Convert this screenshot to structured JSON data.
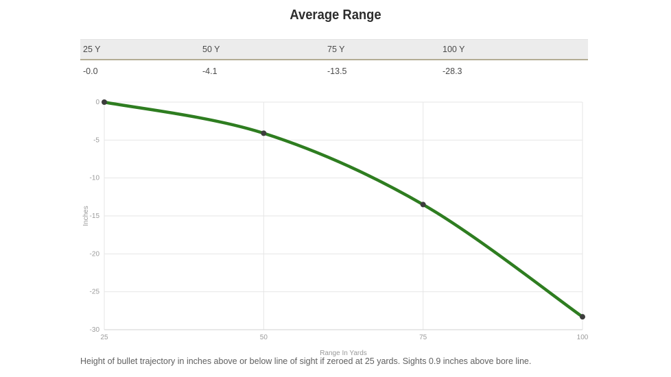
{
  "page": {
    "title": "Average Range",
    "footnote": "Height of bullet trajectory in inches above or below line of sight if zeroed at 25 yards. Sights 0.9 inches above bore line."
  },
  "range_table": {
    "columns": [
      "25 Y",
      "50 Y",
      "75 Y",
      "100 Y"
    ],
    "values": [
      "-0.0",
      "-4.1",
      "-13.5",
      "-28.3"
    ]
  },
  "chart_data": {
    "type": "line",
    "x": [
      25,
      50,
      75,
      100
    ],
    "values": [
      0,
      -4.1,
      -13.5,
      -28.3
    ],
    "title": "Average Range",
    "xlabel": "Range In Yards",
    "ylabel": "Inches",
    "xlim": [
      25,
      100
    ],
    "ylim": [
      -30,
      0
    ],
    "xticks": [
      25,
      50,
      75,
      100
    ],
    "yticks": [
      0,
      -5,
      -10,
      -15,
      -20,
      -25,
      -30
    ],
    "grid": true,
    "legend": "none",
    "colors": {
      "line": "#2e7d20",
      "point": "#3d3d3d",
      "grid": "#e6e6e6",
      "axis_line": "#d0d0d0",
      "tick_label": "#9b9b9b",
      "axis_title": "#999999"
    }
  },
  "theme": {
    "header_bg": "#ececec",
    "header_border": "#b3ac94",
    "title_color": "#2d2d2d",
    "cell_color": "#4a4a4a",
    "footnote_color": "#606060"
  }
}
